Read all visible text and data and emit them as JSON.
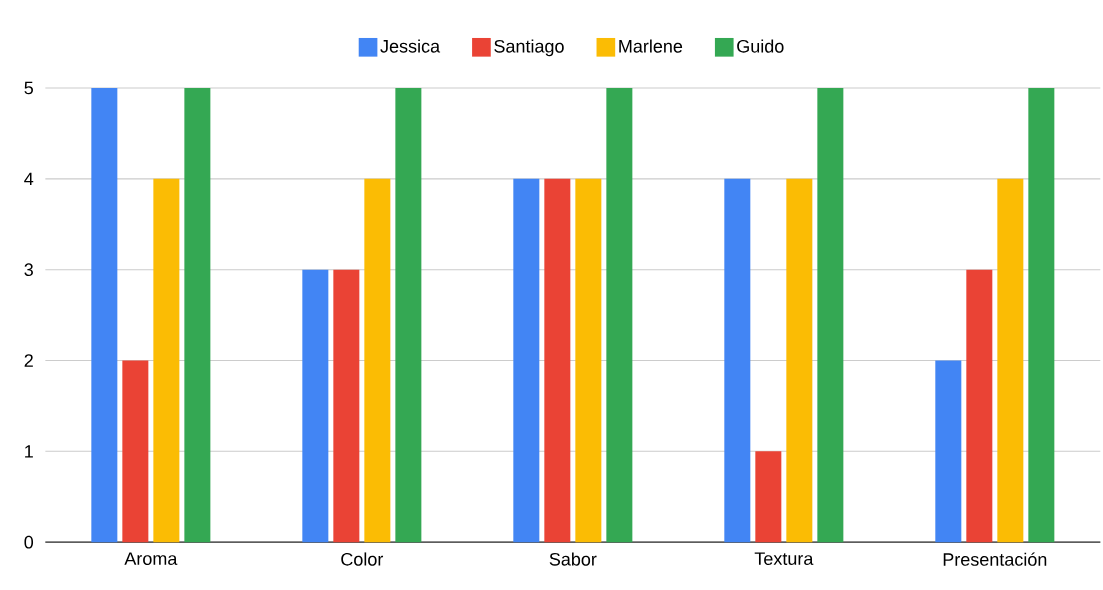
{
  "chart_data": {
    "type": "bar",
    "categories": [
      "Aroma",
      "Color",
      "Sabor",
      "Textura",
      "Presentación"
    ],
    "series": [
      {
        "name": "Jessica",
        "color": "#4285f4",
        "values": [
          5,
          3,
          4,
          4,
          2
        ]
      },
      {
        "name": "Santiago",
        "color": "#ea4335",
        "values": [
          2,
          3,
          4,
          1,
          3
        ]
      },
      {
        "name": "Marlene",
        "color": "#fbbc04",
        "values": [
          4,
          4,
          4,
          4,
          4
        ]
      },
      {
        "name": "Guido",
        "color": "#34a853",
        "values": [
          5,
          5,
          5,
          5,
          5
        ]
      }
    ],
    "ylim": [
      0,
      5
    ],
    "yticks": [
      0,
      1,
      2,
      3,
      4,
      5
    ],
    "grid": "y",
    "legend": "top"
  }
}
